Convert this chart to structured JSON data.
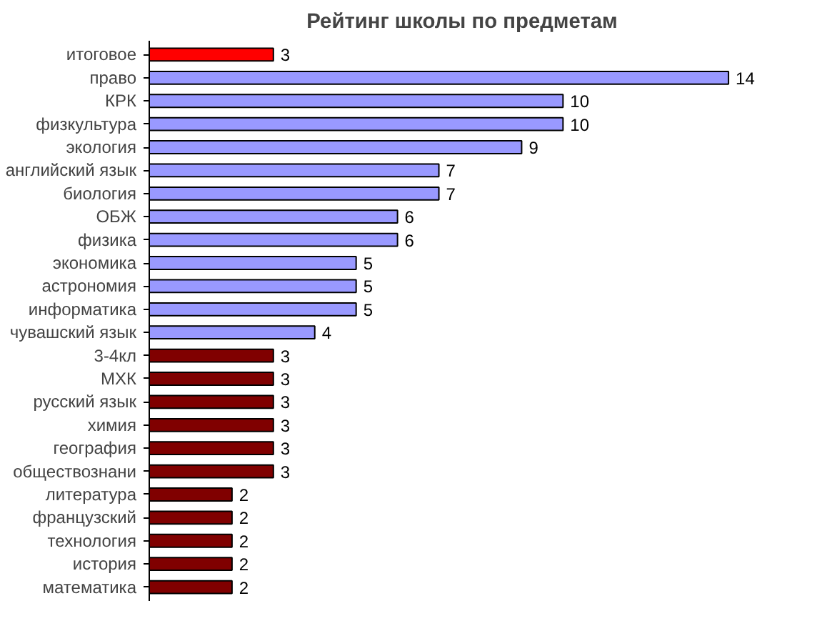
{
  "chart_data": {
    "type": "bar",
    "orientation": "horizontal",
    "title": "Рейтинг школы по предметам",
    "categories": [
      "итоговое",
      "право",
      "КРК",
      "физкультура",
      "экология",
      "английский язык",
      "биология",
      "ОБЖ",
      "физика",
      "экономика",
      "астрономия",
      "информатика",
      "чувашский язык",
      "3-4кл",
      "МХК",
      "русский язык",
      "химия",
      "география",
      "обществознани",
      "литература",
      "французский",
      "технология",
      "история",
      "математика"
    ],
    "values": [
      3,
      14,
      10,
      10,
      9,
      7,
      7,
      6,
      6,
      5,
      5,
      5,
      4,
      3,
      3,
      3,
      3,
      3,
      3,
      2,
      2,
      2,
      2,
      2
    ],
    "colors": [
      "#ff0000",
      "#9999ff",
      "#9999ff",
      "#9999ff",
      "#9999ff",
      "#9999ff",
      "#9999ff",
      "#9999ff",
      "#9999ff",
      "#9999ff",
      "#9999ff",
      "#9999ff",
      "#9999ff",
      "#800000",
      "#800000",
      "#800000",
      "#800000",
      "#800000",
      "#800000",
      "#800000",
      "#800000",
      "#800000",
      "#800000",
      "#800000"
    ],
    "data_labels": true
  }
}
